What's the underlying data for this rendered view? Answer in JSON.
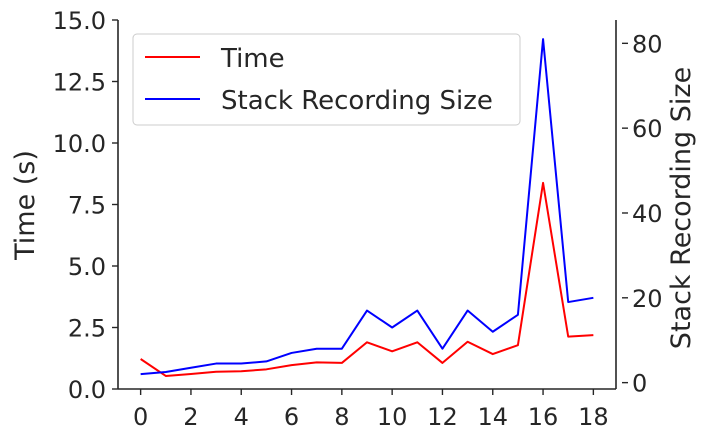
{
  "chart_data": {
    "type": "line",
    "x": [
      0,
      1,
      2,
      3,
      4,
      5,
      6,
      7,
      8,
      9,
      10,
      11,
      12,
      13,
      14,
      15,
      16,
      17,
      18
    ],
    "xticks": [
      "0",
      "2",
      "4",
      "6",
      "8",
      "10",
      "12",
      "14",
      "16",
      "18"
    ],
    "xlim": [
      -0.9,
      18.9
    ],
    "ylabel_left": "Time (s)",
    "ylabel_right": "Stack Recording Size",
    "ylim_left": [
      0,
      15
    ],
    "yticks_left": [
      "0.0",
      "2.5",
      "5.0",
      "7.5",
      "10.0",
      "12.5",
      "15.0"
    ],
    "ylim_right": [
      -1.5,
      85.5
    ],
    "yticks_right": [
      "0",
      "20",
      "40",
      "60",
      "80"
    ],
    "grid": false,
    "legend_position": "top-left",
    "series": [
      {
        "name": "Time",
        "axis": "left",
        "color": "#ff0000",
        "values": [
          1.22,
          0.53,
          0.61,
          0.7,
          0.72,
          0.8,
          0.97,
          1.08,
          1.06,
          1.9,
          1.53,
          1.9,
          1.06,
          1.92,
          1.42,
          1.78,
          8.38,
          2.13,
          2.19
        ]
      },
      {
        "name": "Stack Recording Size",
        "axis": "right",
        "color": "#0000ff",
        "values": [
          2,
          2.5,
          3.5,
          4.5,
          4.5,
          5,
          7,
          8,
          8,
          17,
          13,
          17,
          8,
          17,
          12,
          16,
          81,
          19,
          20
        ]
      }
    ]
  }
}
